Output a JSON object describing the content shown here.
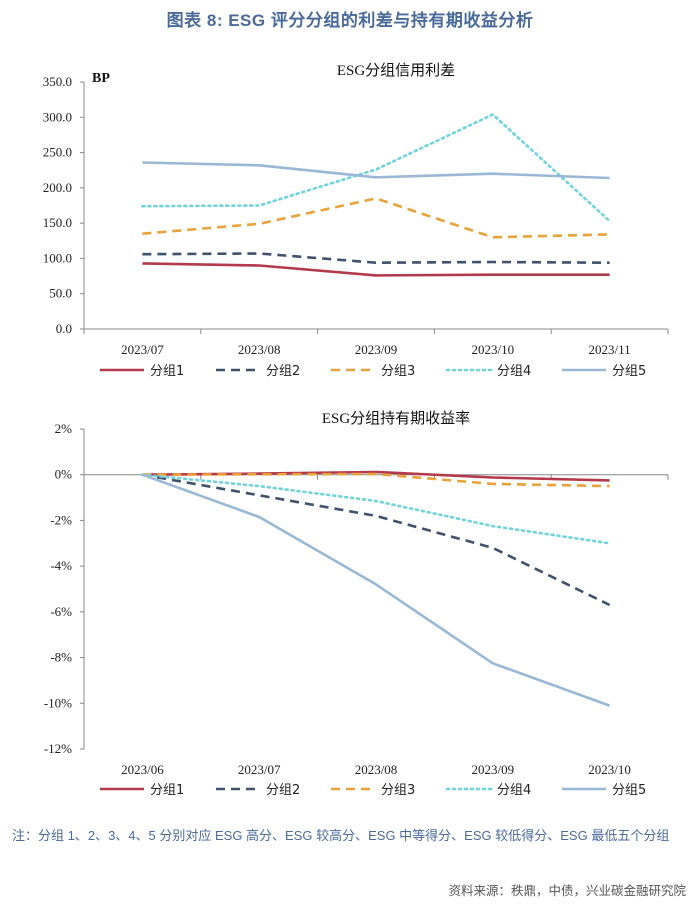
{
  "figure_title": "图表 8:   ESG 评分分组的利差与持有期收益分析",
  "note": "注：分组 1、2、3、4、5 分别对应 ESG 高分、ESG 较高分、ESG 中等得分、ESG 较低得分、ESG 最低五个分组",
  "source": "资料来源：秩鼎，中债，兴业碳金融研究院",
  "series_styles": [
    {
      "name": "分组1",
      "color": "#b33a4a",
      "dash": "solid"
    },
    {
      "name": "分组2",
      "color": "#3f516b",
      "dash": "dash"
    },
    {
      "name": "分组3",
      "color": "#e9a23b",
      "dash": "dash"
    },
    {
      "name": "分组4",
      "color": "#6fd3dc",
      "dash": "dot"
    },
    {
      "name": "分组5",
      "color": "#9ab8d6",
      "dash": "solid"
    }
  ],
  "chart_data": [
    {
      "type": "line",
      "title": "ESG分组信用利差",
      "ylabel": "BP",
      "categories": [
        "2023/07",
        "2023/08",
        "2023/09",
        "2023/10",
        "2023/11"
      ],
      "ylim": [
        0,
        350
      ],
      "yticks": [
        "0.0",
        "50.0",
        "100.0",
        "150.0",
        "200.0",
        "250.0",
        "300.0",
        "350.0"
      ],
      "series": [
        {
          "name": "分组1",
          "values": [
            93,
            90,
            76,
            77,
            77
          ]
        },
        {
          "name": "分组2",
          "values": [
            106,
            107,
            94,
            95,
            94
          ]
        },
        {
          "name": "分组3",
          "values": [
            135,
            149,
            185,
            130,
            134
          ]
        },
        {
          "name": "分组4",
          "values": [
            174,
            175,
            226,
            304,
            153
          ]
        },
        {
          "name": "分组5",
          "values": [
            236,
            232,
            215,
            220,
            214
          ]
        }
      ]
    },
    {
      "type": "line",
      "title": "ESG分组持有期收益率",
      "categories": [
        "2023/06",
        "2023/07",
        "2023/08",
        "2023/09",
        "2023/10"
      ],
      "ylim": [
        -12,
        2
      ],
      "yticks": [
        "-12%",
        "-10%",
        "-8%",
        "-6%",
        "-4%",
        "-2%",
        "0%",
        "2%"
      ],
      "series": [
        {
          "name": "分组1",
          "values": [
            0,
            0.05,
            0.12,
            -0.12,
            -0.25
          ]
        },
        {
          "name": "分组2",
          "values": [
            0,
            -0.9,
            -1.8,
            -3.2,
            -5.7
          ]
        },
        {
          "name": "分组3",
          "values": [
            0,
            0.02,
            0.03,
            -0.4,
            -0.5
          ]
        },
        {
          "name": "分组4",
          "values": [
            0,
            -0.5,
            -1.15,
            -2.25,
            -3.0
          ]
        },
        {
          "name": "分组5",
          "values": [
            0,
            -1.85,
            -4.8,
            -8.25,
            -10.1
          ]
        }
      ]
    }
  ]
}
